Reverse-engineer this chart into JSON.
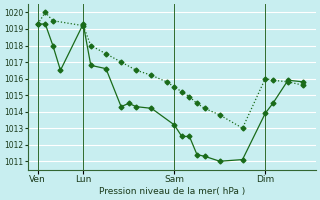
{
  "background_color": "#c8eef0",
  "grid_color": "#ffffff",
  "line_color": "#1a6b1a",
  "xlabel": "Pression niveau de la mer( hPa )",
  "ylim": [
    1010.5,
    1020.5
  ],
  "yticks": [
    1011,
    1012,
    1013,
    1014,
    1015,
    1016,
    1017,
    1018,
    1019,
    1020
  ],
  "xtick_labels": [
    "Ven",
    "Lun",
    "Sam",
    "Dim"
  ],
  "xtick_positions": [
    0,
    36,
    108,
    180
  ],
  "vline_positions": [
    0,
    36,
    108,
    180
  ],
  "series1_x": [
    0,
    6,
    12,
    18,
    36,
    42,
    54,
    66,
    72,
    78,
    90,
    108,
    114,
    120,
    126,
    132,
    144,
    162,
    180,
    186,
    198,
    210
  ],
  "series1_y": [
    1019.3,
    1019.3,
    1018.0,
    1016.5,
    1019.3,
    1016.8,
    1016.6,
    1014.3,
    1014.5,
    1014.3,
    1014.2,
    1013.2,
    1012.5,
    1012.5,
    1011.4,
    1011.3,
    1011.0,
    1011.1,
    1013.9,
    1014.5,
    1015.9,
    1015.8
  ],
  "series2_x": [
    0,
    6,
    12,
    36,
    42,
    54,
    66,
    78,
    90,
    102,
    108,
    114,
    120,
    126,
    132,
    144,
    162,
    180,
    186,
    198,
    210
  ],
  "series2_y": [
    1019.3,
    1020.0,
    1019.5,
    1019.2,
    1018.0,
    1017.5,
    1017.0,
    1016.5,
    1016.2,
    1015.8,
    1015.5,
    1015.2,
    1014.9,
    1014.5,
    1014.2,
    1013.8,
    1013.0,
    1016.0,
    1015.9,
    1015.8,
    1015.6
  ]
}
